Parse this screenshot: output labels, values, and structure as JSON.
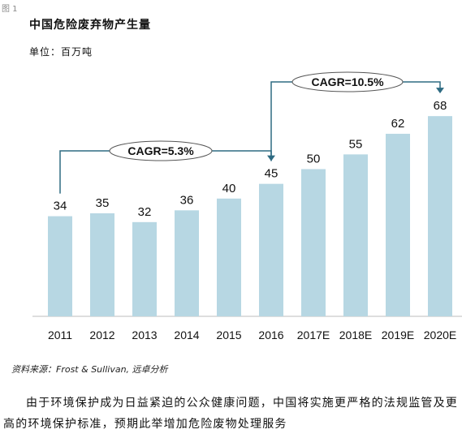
{
  "figure_label": "图 1",
  "chart_data": {
    "type": "bar",
    "title": "中国危险废弃物产生量",
    "unit_label": "单位：百万吨",
    "categories": [
      "2011",
      "2012",
      "2013",
      "2014",
      "2015",
      "2016",
      "2017E",
      "2018E",
      "2019E",
      "2020E"
    ],
    "values": [
      34,
      35,
      32,
      36,
      40,
      45,
      50,
      55,
      62,
      68
    ],
    "bar_color": "#b7d7e3",
    "annotations": [
      {
        "text": "CAGR=5.3%",
        "from": "2011",
        "to": "2016"
      },
      {
        "text": "CAGR=10.5%",
        "from": "2016",
        "to": "2020E"
      }
    ],
    "annotation_color": "#2e6b82"
  },
  "source": "资料来源：Frost & Sullivan, 远卓分析",
  "paragraph": "由于环境保护成为日益紧迫的公众健康问题，中国将实施更严格的法规监管及更高的环境保护标准，预期此举增加危险废物处理服务"
}
